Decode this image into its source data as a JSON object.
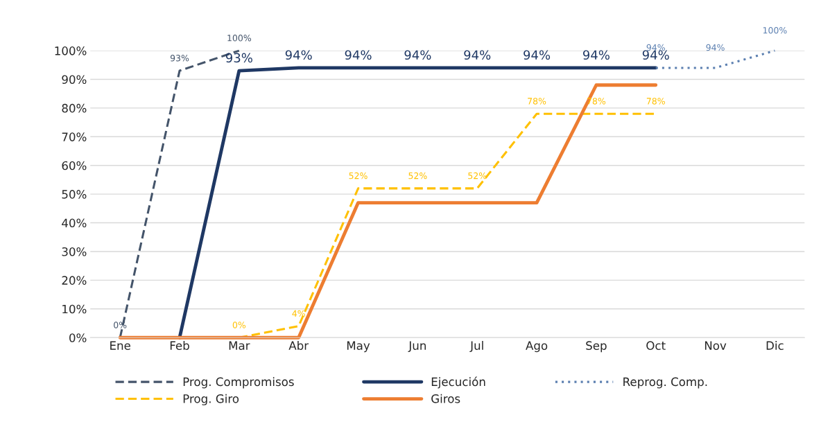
{
  "chart_data": {
    "type": "line",
    "categories": [
      "Ene",
      "Feb",
      "Mar",
      "Abr",
      "May",
      "Jun",
      "Jul",
      "Ago",
      "Sep",
      "Oct",
      "Nov",
      "Dic"
    ],
    "series": [
      {
        "name": "Prog. Compromisos",
        "color": "#44546a",
        "line_style": "dashed",
        "values": [
          0,
          93,
          100,
          null,
          null,
          null,
          null,
          null,
          null,
          null,
          null,
          null
        ],
        "value_labels": [
          "0%",
          "93%",
          "100%",
          null,
          null,
          null,
          null,
          null,
          null,
          null,
          null,
          null
        ]
      },
      {
        "name": "Prog. Giro",
        "color": "#ffc000",
        "line_style": "dashed",
        "values": [
          null,
          null,
          0,
          4,
          52,
          52,
          52,
          78,
          78,
          78,
          null,
          null
        ],
        "value_labels": [
          null,
          null,
          "0%",
          "4%",
          "52%",
          "52%",
          "52%",
          "78%",
          "78%",
          "78%",
          null,
          null
        ]
      },
      {
        "name": "Ejecución",
        "color": "#1f3864",
        "line_style": "solid",
        "values": [
          null,
          0,
          93,
          94,
          94,
          94,
          94,
          94,
          94,
          94,
          null,
          null
        ],
        "value_labels": [
          null,
          null,
          "93%",
          "94%",
          "94%",
          "94%",
          "94%",
          "94%",
          "94%",
          "94%",
          null,
          null
        ]
      },
      {
        "name": "Giros",
        "color": "#ed7d31",
        "line_style": "solid",
        "values": [
          0,
          0,
          0,
          0,
          47,
          47,
          47,
          47,
          88,
          88,
          null,
          null
        ]
      },
      {
        "name": "Reprog. Comp.",
        "color": "#5b7fb0",
        "line_style": "dotted",
        "values": [
          null,
          null,
          null,
          null,
          null,
          null,
          null,
          null,
          null,
          94,
          94,
          100
        ],
        "value_labels": [
          null,
          null,
          null,
          null,
          null,
          null,
          null,
          null,
          null,
          "94%",
          "94%",
          "100%"
        ]
      }
    ],
    "ylim": [
      0,
      100
    ],
    "yticks": [
      {
        "value": 0,
        "label": "0%"
      },
      {
        "value": 10,
        "label": "10%"
      },
      {
        "value": 20,
        "label": "20%"
      },
      {
        "value": 30,
        "label": "30%"
      },
      {
        "value": 40,
        "label": "40%"
      },
      {
        "value": 50,
        "label": "50%"
      },
      {
        "value": 60,
        "label": "60%"
      },
      {
        "value": 70,
        "label": "70%"
      },
      {
        "value": 80,
        "label": "80%"
      },
      {
        "value": 90,
        "label": "90%"
      },
      {
        "value": 100,
        "label": "100%"
      }
    ],
    "grid": "y",
    "legend": "bottom",
    "marker": "none"
  }
}
